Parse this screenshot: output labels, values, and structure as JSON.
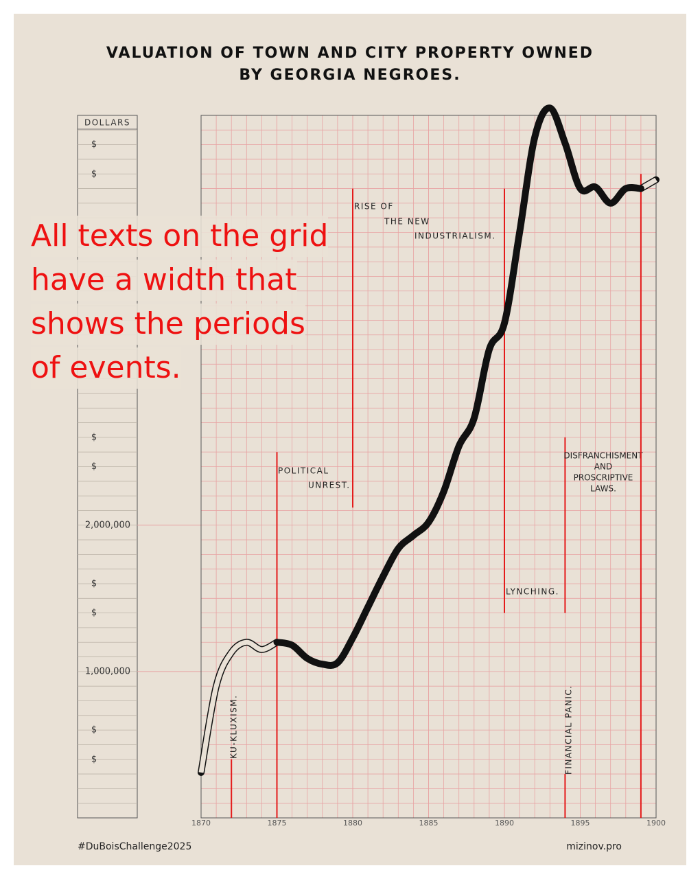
{
  "chart_data": {
    "type": "line",
    "title": [
      "VALUATION OF TOWN AND CITY PROPERTY OWNED",
      "BY GEORGIA NEGROES."
    ],
    "y_axis_label": "DOLLARS",
    "x": [
      1870,
      1871,
      1872,
      1873,
      1874,
      1875,
      1876,
      1877,
      1878,
      1879,
      1880,
      1881,
      1882,
      1883,
      1884,
      1885,
      1886,
      1887,
      1888,
      1889,
      1890,
      1891,
      1892,
      1893,
      1894,
      1895,
      1896,
      1897,
      1898,
      1899,
      1900
    ],
    "series": [
      {
        "style": "outline",
        "color": "#111111",
        "values": [
          310000,
          900000,
          1130000,
          1200000,
          1150000,
          1200000,
          null,
          null,
          null,
          null,
          null,
          null,
          null,
          null,
          null,
          null,
          null,
          null,
          null,
          null,
          null,
          null,
          null,
          null,
          null,
          null,
          null,
          null,
          null,
          4300000,
          4360000
        ]
      },
      {
        "style": "solid",
        "color": "#111111",
        "values": [
          null,
          null,
          null,
          null,
          null,
          1200000,
          1180000,
          1090000,
          1050000,
          1060000,
          1230000,
          1440000,
          1650000,
          1840000,
          1930000,
          2020000,
          2230000,
          2540000,
          2730000,
          3200000,
          3380000,
          4000000,
          4650000,
          4850000,
          4610000,
          4300000,
          4310000,
          4200000,
          4300000,
          4300000,
          null
        ]
      }
    ],
    "xlim": [
      1870,
      1900
    ],
    "ylim": [
      0,
      4800000
    ],
    "xticks": [
      1870,
      1875,
      1880,
      1885,
      1890,
      1895,
      1900
    ],
    "yticks": [
      {
        "value": 400000,
        "label": "$"
      },
      {
        "value": 600000,
        "label": "$"
      },
      {
        "value": 1000000,
        "label": "1,000,000"
      },
      {
        "value": 1400000,
        "label": "$"
      },
      {
        "value": 1600000,
        "label": "$"
      },
      {
        "value": 2000000,
        "label": "2,000,000"
      },
      {
        "value": 2400000,
        "label": "$"
      },
      {
        "value": 2600000,
        "label": "$"
      },
      {
        "value": 4400000,
        "label": "$"
      },
      {
        "value": 4600000,
        "label": "$"
      }
    ],
    "grid": true,
    "grid_step": {
      "x": 1,
      "y": 100000
    },
    "grid_color": "#e8a3a3",
    "annotation_color": "#e41b1b",
    "annotations": [
      {
        "lines": [
          "KU-KLUXISM."
        ],
        "x": 1872,
        "y": [
          0,
          400000
        ]
      },
      {
        "lines": [
          "POLITICAL",
          "UNREST."
        ],
        "x": 1875,
        "y": [
          0,
          2500000
        ]
      },
      {
        "lines": [
          "RISE OF",
          "THE NEW",
          "INDUSTRIALISM."
        ],
        "x": 1880,
        "y": [
          2120000,
          4300000
        ]
      },
      {
        "lines": [
          "LYNCHING."
        ],
        "x": 1890,
        "y": [
          1400000,
          4300000
        ]
      },
      {
        "lines": [
          "FINANCIAL PANIC."
        ],
        "x": 1894,
        "y": [
          0,
          300000
        ]
      },
      {
        "lines": [
          "DISFRANCHISMENT",
          "AND",
          "PROSCRIPTIVE",
          "LAWS."
        ],
        "x": 1894,
        "y": [
          1400000,
          2600000
        ]
      },
      {
        "lines": [],
        "x": 1899,
        "y": [
          0,
          4400000
        ]
      }
    ]
  },
  "footer": {
    "left": "#DuBoisChallenge2025",
    "right": "mizinov.pro"
  },
  "note": {
    "lines": [
      "All texts on the grid",
      "have a width that",
      "shows the periods",
      "of events."
    ]
  }
}
